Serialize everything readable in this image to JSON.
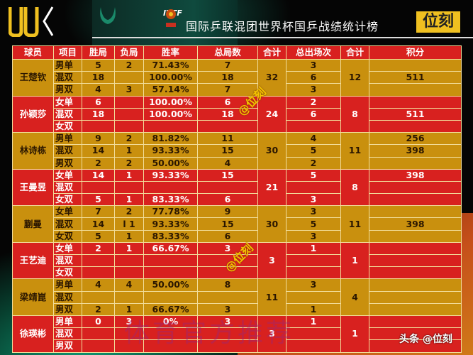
{
  "header": {
    "title": "国际乒联混团世界杯国乒战绩统计榜",
    "brand": "位刻",
    "logo_text": "WK",
    "itf_text": "ITTF"
  },
  "colors": {
    "gold": "#c9900e",
    "red": "#d8211f",
    "brand_yellow": "#f0c020"
  },
  "columns": [
    "球员",
    "项目",
    "胜局",
    "负局",
    "胜率",
    "总局数",
    "合计",
    "总出场次",
    "合计",
    "积分"
  ],
  "players": [
    {
      "name": "王楚钦",
      "games_total": "32",
      "appear_total": "12",
      "color": "gold",
      "rows": [
        {
          "event": "男单",
          "won": "5",
          "lost": "2",
          "rate": "71.43%",
          "total": "7",
          "appear": "3",
          "points": ""
        },
        {
          "event": "混双",
          "won": "18",
          "lost": "",
          "rate": "100.00%",
          "total": "18",
          "appear": "6",
          "points": "511"
        },
        {
          "event": "男双",
          "won": "4",
          "lost": "3",
          "rate": "57.14%",
          "total": "7",
          "appear": "3",
          "points": ""
        }
      ]
    },
    {
      "name": "孙颖莎",
      "games_total": "24",
      "appear_total": "8",
      "color": "red",
      "rows": [
        {
          "event": "女单",
          "won": "6",
          "lost": "",
          "rate": "100.00%",
          "total": "6",
          "appear": "2",
          "points": ""
        },
        {
          "event": "混双",
          "won": "18",
          "lost": "",
          "rate": "100.00%",
          "total": "18",
          "appear": "6",
          "points": "511"
        },
        {
          "event": "女双",
          "won": "",
          "lost": "",
          "rate": "",
          "total": "",
          "appear": "",
          "points": ""
        }
      ]
    },
    {
      "name": "林诗栋",
      "games_total": "30",
      "appear_total": "11",
      "color": "gold",
      "rows": [
        {
          "event": "男单",
          "won": "9",
          "lost": "2",
          "rate": "81.82%",
          "total": "11",
          "appear": "4",
          "points": "256"
        },
        {
          "event": "混双",
          "won": "14",
          "lost": "1",
          "rate": "93.33%",
          "total": "15",
          "appear": "5",
          "points": "398"
        },
        {
          "event": "男双",
          "won": "2",
          "lost": "2",
          "rate": "50.00%",
          "total": "4",
          "appear": "2",
          "points": ""
        }
      ]
    },
    {
      "name": "王曼昱",
      "games_total": "21",
      "appear_total": "8",
      "color": "red",
      "rows": [
        {
          "event": "女单",
          "won": "14",
          "lost": "1",
          "rate": "93.33%",
          "total": "15",
          "appear": "5",
          "points": "398"
        },
        {
          "event": "混双",
          "won": "",
          "lost": "",
          "rate": "",
          "total": "",
          "appear": "",
          "points": ""
        },
        {
          "event": "女双",
          "won": "5",
          "lost": "1",
          "rate": "83.33%",
          "total": "6",
          "appear": "3",
          "points": ""
        }
      ]
    },
    {
      "name": "蒯曼",
      "games_total": "30",
      "appear_total": "11",
      "color": "gold",
      "rows": [
        {
          "event": "女单",
          "won": "7",
          "lost": "2",
          "rate": "77.78%",
          "total": "9",
          "appear": "3",
          "points": ""
        },
        {
          "event": "混双",
          "won": "14",
          "lost": "l 1",
          "rate": "93.33%",
          "total": "15",
          "appear": "5",
          "points": "398"
        },
        {
          "event": "女双",
          "won": "5",
          "lost": "1",
          "rate": "83.33%",
          "total": "6",
          "appear": "3",
          "points": ""
        }
      ]
    },
    {
      "name": "王艺迪",
      "games_total": "3",
      "appear_total": "1",
      "color": "red",
      "rows": [
        {
          "event": "女单",
          "won": "2",
          "lost": "1",
          "rate": "66.67%",
          "total": "3",
          "appear": "1",
          "points": ""
        },
        {
          "event": "混双",
          "won": "",
          "lost": "",
          "rate": "",
          "total": "",
          "appear": "",
          "points": ""
        },
        {
          "event": "女双",
          "won": "",
          "lost": "",
          "rate": "",
          "total": "",
          "appear": "",
          "points": ""
        }
      ]
    },
    {
      "name": "梁靖崑",
      "games_total": "11",
      "appear_total": "4",
      "color": "gold",
      "rows": [
        {
          "event": "男单",
          "won": "4",
          "lost": "4",
          "rate": "50.00%",
          "total": "8",
          "appear": "3",
          "points": ""
        },
        {
          "event": "混双",
          "won": "",
          "lost": "",
          "rate": "",
          "total": "",
          "appear": "",
          "points": ""
        },
        {
          "event": "男双",
          "won": "2",
          "lost": "1",
          "rate": "66.67%",
          "total": "3",
          "appear": "1",
          "points": ""
        }
      ]
    },
    {
      "name": "徐瑛彬",
      "games_total": "3",
      "appear_total": "1",
      "color": "red",
      "rows": [
        {
          "event": "男单",
          "won": "0",
          "lost": "3",
          "rate": "0%",
          "total": "3",
          "appear": "1",
          "points": ""
        },
        {
          "event": "混双",
          "won": "",
          "lost": "",
          "rate": "",
          "total": "",
          "appear": "",
          "points": ""
        },
        {
          "event": "男双",
          "won": "",
          "lost": "",
          "rate": "",
          "total": "",
          "appear": "",
          "points": ""
        }
      ]
    }
  ],
  "watermarks": {
    "handle": "@位刻",
    "faint": "体育官方推荐",
    "footer": "头条 @位刻"
  }
}
